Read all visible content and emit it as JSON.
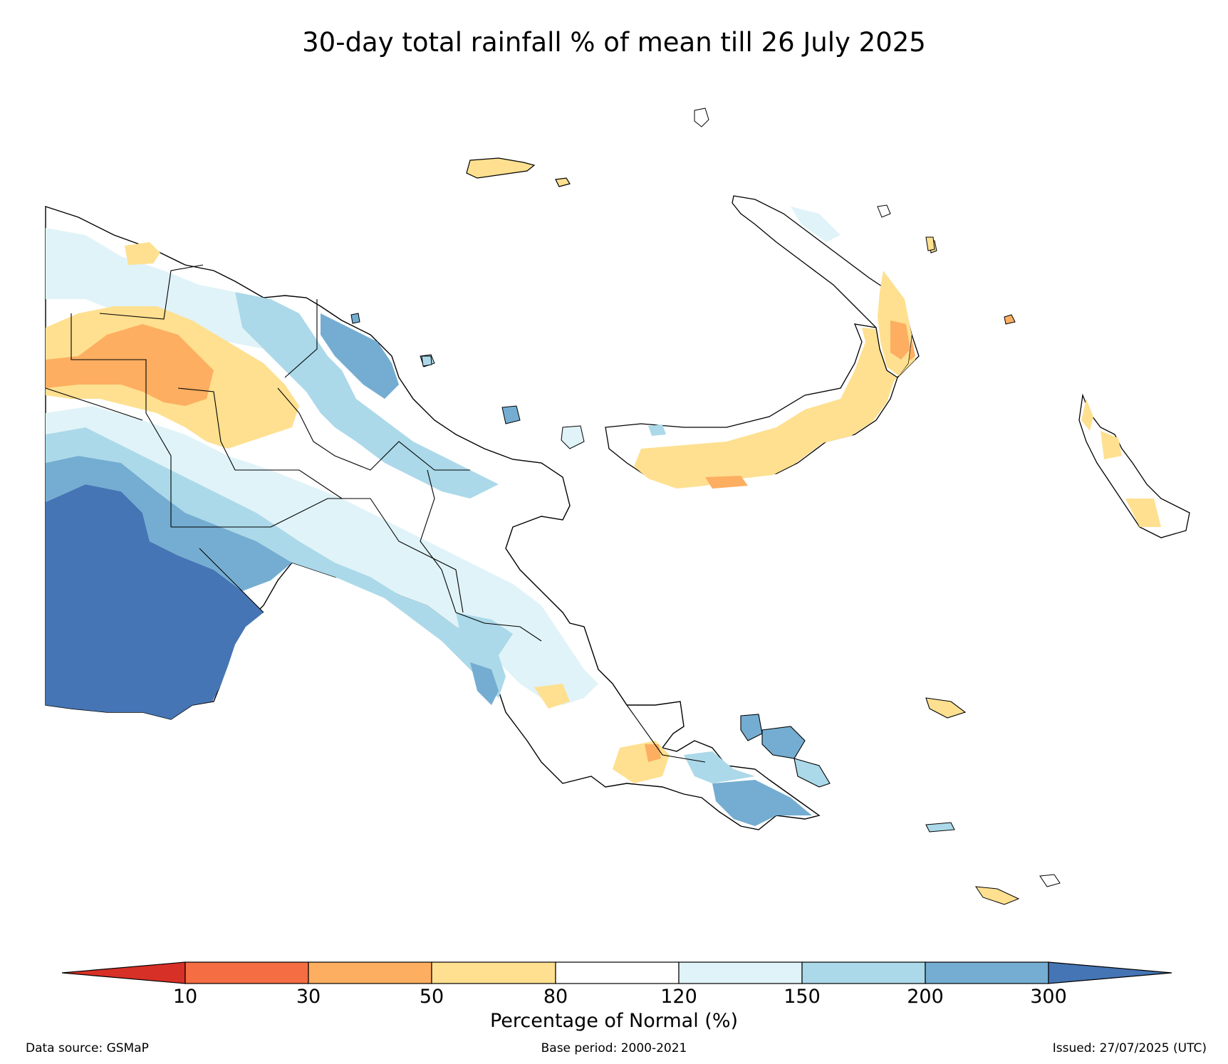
{
  "title": "30-day total rainfall % of mean till 26 July 2025",
  "legend": {
    "title": "Percentage of Normal (%)",
    "ticks": [
      "10",
      "30",
      "50",
      "80",
      "120",
      "150",
      "200",
      "300"
    ],
    "colors": {
      "below_10": "#d73027",
      "10_30": "#f46d43",
      "30_50": "#fdae61",
      "50_80": "#fee090",
      "80_120": "#ffffff",
      "120_150": "#e0f3f8",
      "150_200": "#abd9e9",
      "200_300": "#74add1",
      "above_300": "#4575b4"
    }
  },
  "footer": {
    "source": "Data source: GSMaP",
    "base_period": "Base period: 2000-2021",
    "issued": "Issued: 27/07/2025 (UTC)"
  }
}
